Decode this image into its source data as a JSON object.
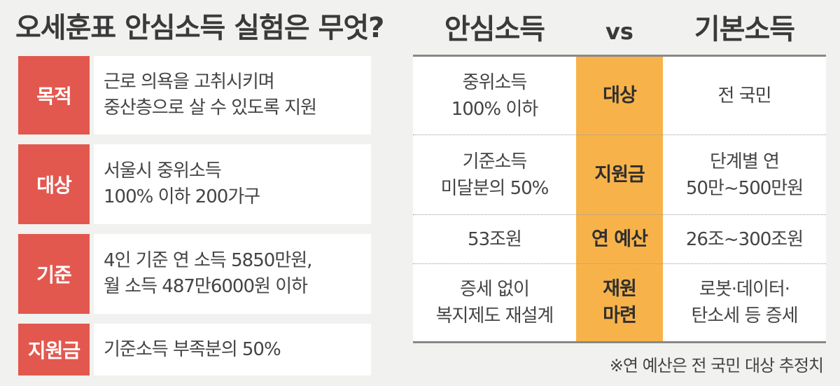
{
  "left": {
    "title": "오세훈표 안심소득 실험은 무엇?",
    "rows": [
      {
        "label": "목적",
        "lines": [
          "근로 의욕을 고취시키며",
          "중산층으로 살 수 있도록 지원"
        ]
      },
      {
        "label": "대상",
        "lines": [
          "서울시 중위소득",
          "100% 이하 200가구"
        ]
      },
      {
        "label": "기준",
        "lines": [
          "4인 기준 연 소득 5850만원,",
          "월 소득 487만6000원 이하"
        ]
      },
      {
        "label": "지원금",
        "lines": [
          "기준소득 부족분의 50%"
        ]
      }
    ]
  },
  "compare": {
    "header_left": "안심소득",
    "vs": "vs",
    "header_right": "기본소득",
    "rows": [
      {
        "left": [
          "중위소득",
          "100% 이하"
        ],
        "middle": [
          "대상"
        ],
        "right": [
          "전 국민"
        ]
      },
      {
        "left": [
          "기준소득",
          "미달분의 50%"
        ],
        "middle": [
          "지원금"
        ],
        "right": [
          "단계별 연",
          "50만~500만원"
        ]
      },
      {
        "left": [
          "53조원"
        ],
        "middle": [
          "연 예산"
        ],
        "right": [
          "26조~300조원"
        ]
      },
      {
        "left": [
          "증세 없이",
          "복지제도 재설계"
        ],
        "middle": [
          "재원",
          "마련"
        ],
        "right": [
          "로봇·데이터·",
          "탄소세 등 증세"
        ]
      }
    ],
    "footnote": "※연 예산은 전 국민 대상 추정치"
  },
  "colors": {
    "label_red": "#e2584f",
    "band_orange": "#f7b34a",
    "background": "#f1f1ef"
  }
}
